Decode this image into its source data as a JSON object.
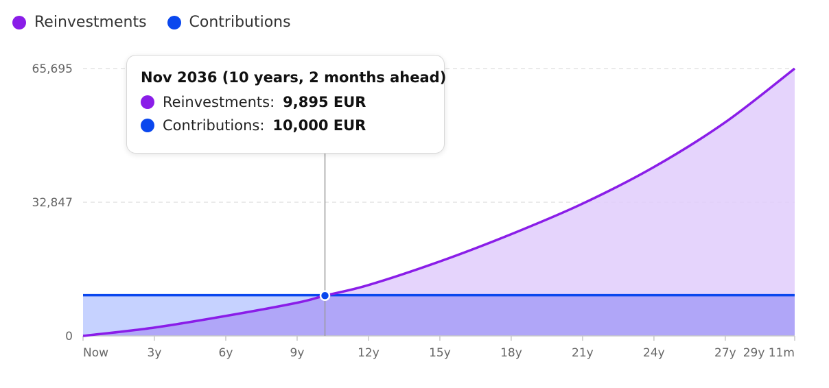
{
  "legend": [
    {
      "label": "Reinvestments",
      "color": "#8a1de8"
    },
    {
      "label": "Contributions",
      "color": "#0a47ee"
    }
  ],
  "tooltip": {
    "title": "Nov 2036 (10 years, 2 months ahead)",
    "rows": [
      {
        "label": "Reinvestments:",
        "value": "9,895 EUR",
        "color": "#8a1de8"
      },
      {
        "label": "Contributions:",
        "value": "10,000 EUR",
        "color": "#0a47ee"
      }
    ]
  },
  "chart_data": {
    "type": "area",
    "x_ticks": [
      "Now",
      "3y",
      "6y",
      "9y",
      "12y",
      "15y",
      "18y",
      "21y",
      "24y",
      "27y",
      "29y 11m"
    ],
    "x_tick_years": [
      0,
      3,
      6,
      9,
      12,
      15,
      18,
      21,
      24,
      27,
      29.917
    ],
    "y_ticks": [
      0,
      32847,
      65695
    ],
    "y_tick_labels": [
      "0",
      "32,847",
      "65,695"
    ],
    "ylim": [
      0,
      65695
    ],
    "xlim_years": [
      0,
      29.917
    ],
    "grid": "horizontal dashed",
    "legend_position": "top-left",
    "series": [
      {
        "name": "Reinvestments",
        "color": "#8a1de8",
        "fill": "#e1ccfb",
        "x_years": [
          0,
          3,
          6,
          9,
          10.17,
          12,
          15,
          18,
          21,
          24,
          27,
          29.917
        ],
        "values": [
          0,
          2050,
          4900,
          8150,
          9895,
          12500,
          18300,
          25000,
          32500,
          41500,
          52500,
          65695
        ]
      },
      {
        "name": "Contributions",
        "color": "#0a47ee",
        "fill": "#c3d0ff",
        "x_years": [
          0,
          29.917
        ],
        "values": [
          10000,
          10000
        ]
      }
    ],
    "highlight": {
      "x_years": 10.17,
      "value": 9895
    }
  }
}
